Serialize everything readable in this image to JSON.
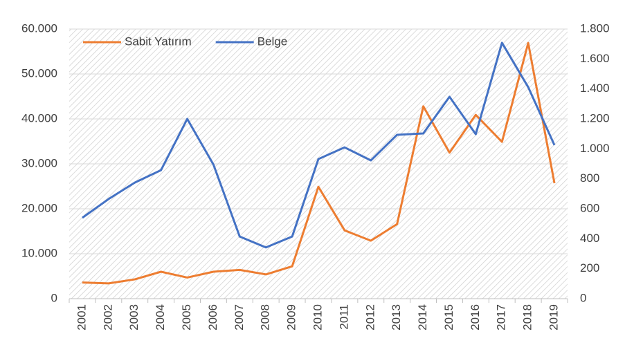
{
  "chart_data": {
    "type": "line",
    "categories": [
      "2001",
      "2002",
      "2003",
      "2004",
      "2005",
      "2006",
      "2007",
      "2008",
      "2009",
      "2010",
      "2011",
      "2012",
      "2013",
      "2014",
      "2015",
      "2016",
      "2017",
      "2018",
      "2019"
    ],
    "series": [
      {
        "name": "Sabit Yatırım",
        "color": "#ED7D31",
        "axis": "y",
        "values": [
          3600,
          3400,
          4300,
          6000,
          4700,
          6000,
          6400,
          5400,
          7200,
          24900,
          15200,
          12900,
          16600,
          42800,
          32500,
          40900,
          34900,
          56900,
          25700
        ]
      },
      {
        "name": "Belge",
        "color": "#4472C4",
        "axis": "y2",
        "values": [
          540,
          665,
          775,
          858,
          1200,
          895,
          415,
          342,
          415,
          932,
          1010,
          923,
          1094,
          1103,
          1348,
          1098,
          1708,
          1412,
          1025
        ]
      }
    ],
    "ylim": [
      0,
      60000
    ],
    "yticks": [
      0,
      {
        "value": 10000,
        "label": "10.000"
      },
      {
        "value": 20000,
        "label": "20.000"
      },
      {
        "value": 30000,
        "label": "30.000"
      },
      {
        "value": 40000,
        "label": "40.000"
      },
      {
        "value": 50000,
        "label": "50.000"
      },
      {
        "value": 60000,
        "label": "60.000"
      }
    ],
    "y2lim": [
      0,
      1800
    ],
    "y2ticks": [
      0,
      200,
      400,
      600,
      800,
      {
        "value": 1000,
        "label": "1.000"
      },
      {
        "value": 1200,
        "label": "1.200"
      },
      {
        "value": 1400,
        "label": "1.400"
      },
      {
        "value": 1600,
        "label": "1.600"
      },
      {
        "value": 1800,
        "label": "1.800"
      }
    ],
    "grid": true,
    "legend": "top-left"
  }
}
